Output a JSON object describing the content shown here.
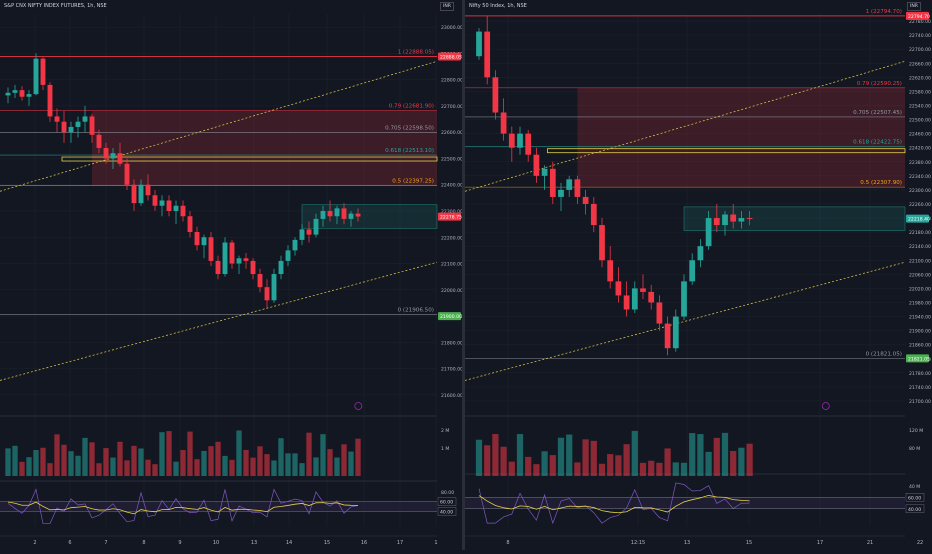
{
  "chart_data": [
    {
      "type": "candlestick",
      "title": "S&P CNX NIFTY INDEX FUTURES, 1h, NSE",
      "currency": "INR",
      "ylim": [
        21550,
        23050
      ],
      "y_ticks": [
        {
          "value": 23000,
          "label": "23000.00"
        },
        {
          "value": 22900,
          "label": "22900.00"
        },
        {
          "value": 22800,
          "label": "22800.00"
        },
        {
          "value": 22700,
          "label": "22700.00"
        },
        {
          "value": 22600,
          "label": "22600.00"
        },
        {
          "value": 22500,
          "label": "22500.00"
        },
        {
          "value": 22400,
          "label": "22400.00"
        },
        {
          "value": 22300,
          "label": "22300.00"
        },
        {
          "value": 22200,
          "label": "22200.00"
        },
        {
          "value": 22100,
          "label": "22100.00"
        },
        {
          "value": 22000,
          "label": "22000.00"
        },
        {
          "value": 21900,
          "label": "21900.00"
        },
        {
          "value": 21800,
          "label": "21800.00"
        },
        {
          "value": 21700,
          "label": "21700.00"
        },
        {
          "value": 21600,
          "label": "21600.00"
        }
      ],
      "x_ticks": [
        "2",
        "6",
        "7",
        "8",
        "9",
        "10",
        "13",
        "14",
        "15",
        "16",
        "17",
        "1"
      ],
      "fib_levels": [
        {
          "ratio": "1",
          "value": 22888.05,
          "label": "1 (22888.05)",
          "color": "#f23645"
        },
        {
          "ratio": "0.79",
          "value": 22681.9,
          "label": "0.79 (22681.90)",
          "color": "#f23645"
        },
        {
          "ratio": "0.705",
          "value": 22598.5,
          "label": "0.705 (22598.50)",
          "color": "#9598a1"
        },
        {
          "ratio": "0.618",
          "value": 22513.1,
          "label": "0.618 (22513.10)",
          "color": "#26a69a"
        },
        {
          "ratio": "0.5",
          "value": 22397.25,
          "label": "0.5 (22397.25)",
          "color": "#f7a21b"
        },
        {
          "ratio": "0",
          "value": 21906.5,
          "label": "0 (21906.50)",
          "color": "#9598a1"
        }
      ],
      "price_badges": [
        {
          "label": "22888.05",
          "value": 22888.05,
          "color": "#f23645"
        },
        {
          "label": "22278.75",
          "value": 22278.75,
          "color": "#f23645"
        },
        {
          "label": "21900.00",
          "value": 21900,
          "color": "#4caf50"
        }
      ],
      "indicator_labels": [
        "2 M",
        "1 M",
        "80.00",
        "60.00",
        "40.00"
      ],
      "candles": [
        [
          22740,
          22770,
          22710,
          22750
        ],
        [
          22750,
          22780,
          22730,
          22760
        ],
        [
          22760,
          22775,
          22720,
          22735
        ],
        [
          22735,
          22760,
          22700,
          22745
        ],
        [
          22745,
          22900,
          22740,
          22880
        ],
        [
          22880,
          22885,
          22760,
          22780
        ],
        [
          22780,
          22790,
          22640,
          22660
        ],
        [
          22660,
          22690,
          22600,
          22640
        ],
        [
          22640,
          22680,
          22560,
          22600
        ],
        [
          22600,
          22640,
          22560,
          22620
        ],
        [
          22620,
          22660,
          22580,
          22640
        ],
        [
          22640,
          22700,
          22600,
          22660
        ],
        [
          22660,
          22670,
          22560,
          22590
        ],
        [
          22590,
          22610,
          22520,
          22540
        ],
        [
          22540,
          22560,
          22480,
          22500
        ],
        [
          22500,
          22540,
          22460,
          22520
        ],
        [
          22520,
          22560,
          22470,
          22480
        ],
        [
          22480,
          22500,
          22380,
          22400
        ],
        [
          22400,
          22420,
          22300,
          22330
        ],
        [
          22330,
          22420,
          22320,
          22400
        ],
        [
          22400,
          22440,
          22340,
          22360
        ],
        [
          22360,
          22380,
          22300,
          22320
        ],
        [
          22320,
          22360,
          22280,
          22340
        ],
        [
          22340,
          22360,
          22280,
          22300
        ],
        [
          22300,
          22340,
          22250,
          22320
        ],
        [
          22320,
          22340,
          22260,
          22280
        ],
        [
          22280,
          22300,
          22200,
          22220
        ],
        [
          22220,
          22240,
          22150,
          22170
        ],
        [
          22170,
          22210,
          22120,
          22200
        ],
        [
          22200,
          22220,
          22090,
          22110
        ],
        [
          22110,
          22130,
          22040,
          22060
        ],
        [
          22060,
          22200,
          22050,
          22180
        ],
        [
          22180,
          22190,
          22080,
          22100
        ],
        [
          22100,
          22130,
          22060,
          22120
        ],
        [
          22120,
          22140,
          22080,
          22110
        ],
        [
          22110,
          22120,
          22040,
          22060
        ],
        [
          22060,
          22080,
          21990,
          22010
        ],
        [
          22010,
          22040,
          21930,
          21960
        ],
        [
          21960,
          22080,
          21950,
          22060
        ],
        [
          22060,
          22130,
          22040,
          22110
        ],
        [
          22110,
          22170,
          22090,
          22150
        ],
        [
          22150,
          22200,
          22130,
          22190
        ],
        [
          22190,
          22250,
          22170,
          22230
        ],
        [
          22230,
          22260,
          22180,
          22210
        ],
        [
          22210,
          22290,
          22200,
          22270
        ],
        [
          22270,
          22320,
          22240,
          22300
        ],
        [
          22300,
          22340,
          22260,
          22280
        ],
        [
          22280,
          22320,
          22250,
          22310
        ],
        [
          22310,
          22330,
          22250,
          22270
        ],
        [
          22270,
          22300,
          22240,
          22290
        ],
        [
          22290,
          22310,
          22260,
          22279
        ]
      ]
    },
    {
      "type": "candlestick",
      "title": "Nifty 50 Index, 1h, NSE",
      "currency": "INR",
      "ylim": [
        21680,
        22800
      ],
      "y_ticks": [
        {
          "value": 22780,
          "label": "22780.00"
        },
        {
          "value": 22740,
          "label": "22740.00"
        },
        {
          "value": 22700,
          "label": "22700.00"
        },
        {
          "value": 22660,
          "label": "22660.00"
        },
        {
          "value": 22620,
          "label": "22620.00"
        },
        {
          "value": 22580,
          "label": "22580.00"
        },
        {
          "value": 22540,
          "label": "22540.00"
        },
        {
          "value": 22500,
          "label": "22500.00"
        },
        {
          "value": 22460,
          "label": "22460.00"
        },
        {
          "value": 22420,
          "label": "22420.00"
        },
        {
          "value": 22380,
          "label": "22380.00"
        },
        {
          "value": 22340,
          "label": "22340.00"
        },
        {
          "value": 22300,
          "label": "22300.00"
        },
        {
          "value": 22260,
          "label": "22260.00"
        },
        {
          "value": 22220,
          "label": "22220.00"
        },
        {
          "value": 22180,
          "label": "22180.00"
        },
        {
          "value": 22140,
          "label": "22140.00"
        },
        {
          "value": 22100,
          "label": "22100.00"
        },
        {
          "value": 22060,
          "label": "22060.00"
        },
        {
          "value": 22020,
          "label": "22020.00"
        },
        {
          "value": 21980,
          "label": "21980.00"
        },
        {
          "value": 21940,
          "label": "21940.00"
        },
        {
          "value": 21900,
          "label": "21900.00"
        },
        {
          "value": 21860,
          "label": "21860.00"
        },
        {
          "value": 21820,
          "label": "21820.00"
        },
        {
          "value": 21780,
          "label": "21780.00"
        },
        {
          "value": 21740,
          "label": "21740.00"
        },
        {
          "value": 21700,
          "label": "21700.00"
        }
      ],
      "x_ticks": [
        "8",
        "12:15",
        "13",
        "15",
        "17",
        "21",
        "22"
      ],
      "fib_levels": [
        {
          "ratio": "1",
          "value": 22794.7,
          "label": "1 (22794.70)",
          "color": "#f23645"
        },
        {
          "ratio": "0.79",
          "value": 22590.25,
          "label": "0.79 (22590.25)",
          "color": "#f23645"
        },
        {
          "ratio": "0.705",
          "value": 22507.45,
          "label": "0.705 (22507.45)",
          "color": "#9598a1"
        },
        {
          "ratio": "0.618",
          "value": 22422.75,
          "label": "0.618 (22422.75)",
          "color": "#26a69a"
        },
        {
          "ratio": "0.5",
          "value": 22307.9,
          "label": "0.5 (22307.90)",
          "color": "#f7a21b"
        },
        {
          "ratio": "0",
          "value": 21821.05,
          "label": "0 (21821.05)",
          "color": "#9598a1"
        }
      ],
      "price_badges": [
        {
          "label": "22794.70",
          "value": 22794.7,
          "color": "#f23645"
        },
        {
          "label": "22218.40",
          "value": 22218.4,
          "color": "#26a69a"
        },
        {
          "label": "21821.05",
          "value": 21821.05,
          "color": "#4caf50"
        }
      ],
      "indicator_labels": [
        "120 M",
        "80 M",
        "40 M",
        "60.00",
        "40.00"
      ],
      "candles": [
        [
          22680,
          22760,
          22670,
          22750
        ],
        [
          22750,
          22795,
          22600,
          22620
        ],
        [
          22620,
          22640,
          22500,
          22520
        ],
        [
          22520,
          22560,
          22440,
          22460
        ],
        [
          22460,
          22480,
          22380,
          22420
        ],
        [
          22420,
          22480,
          22400,
          22460
        ],
        [
          22460,
          22470,
          22380,
          22400
        ],
        [
          22400,
          22420,
          22320,
          22340
        ],
        [
          22340,
          22370,
          22300,
          22360
        ],
        [
          22360,
          22380,
          22260,
          22280
        ],
        [
          22280,
          22320,
          22240,
          22300
        ],
        [
          22300,
          22340,
          22280,
          22330
        ],
        [
          22330,
          22340,
          22260,
          22280
        ],
        [
          22280,
          22300,
          22230,
          22260
        ],
        [
          22260,
          22280,
          22180,
          22200
        ],
        [
          22200,
          22220,
          22080,
          22100
        ],
        [
          22100,
          22140,
          22020,
          22040
        ],
        [
          22040,
          22080,
          21980,
          22000
        ],
        [
          22000,
          22040,
          21940,
          21960
        ],
        [
          21960,
          22040,
          21950,
          22020
        ],
        [
          22020,
          22060,
          21990,
          22010
        ],
        [
          22010,
          22030,
          21960,
          21980
        ],
        [
          21980,
          22000,
          21900,
          21920
        ],
        [
          21920,
          21940,
          21830,
          21850
        ],
        [
          21850,
          21960,
          21840,
          21940
        ],
        [
          21940,
          22060,
          21930,
          22040
        ],
        [
          22040,
          22120,
          22030,
          22100
        ],
        [
          22100,
          22160,
          22080,
          22140
        ],
        [
          22140,
          22240,
          22130,
          22220
        ],
        [
          22220,
          22260,
          22180,
          22200
        ],
        [
          22200,
          22240,
          22170,
          22230
        ],
        [
          22230,
          22260,
          22190,
          22210
        ],
        [
          22210,
          22240,
          22190,
          22220
        ],
        [
          22220,
          22240,
          22200,
          22218
        ]
      ]
    }
  ]
}
